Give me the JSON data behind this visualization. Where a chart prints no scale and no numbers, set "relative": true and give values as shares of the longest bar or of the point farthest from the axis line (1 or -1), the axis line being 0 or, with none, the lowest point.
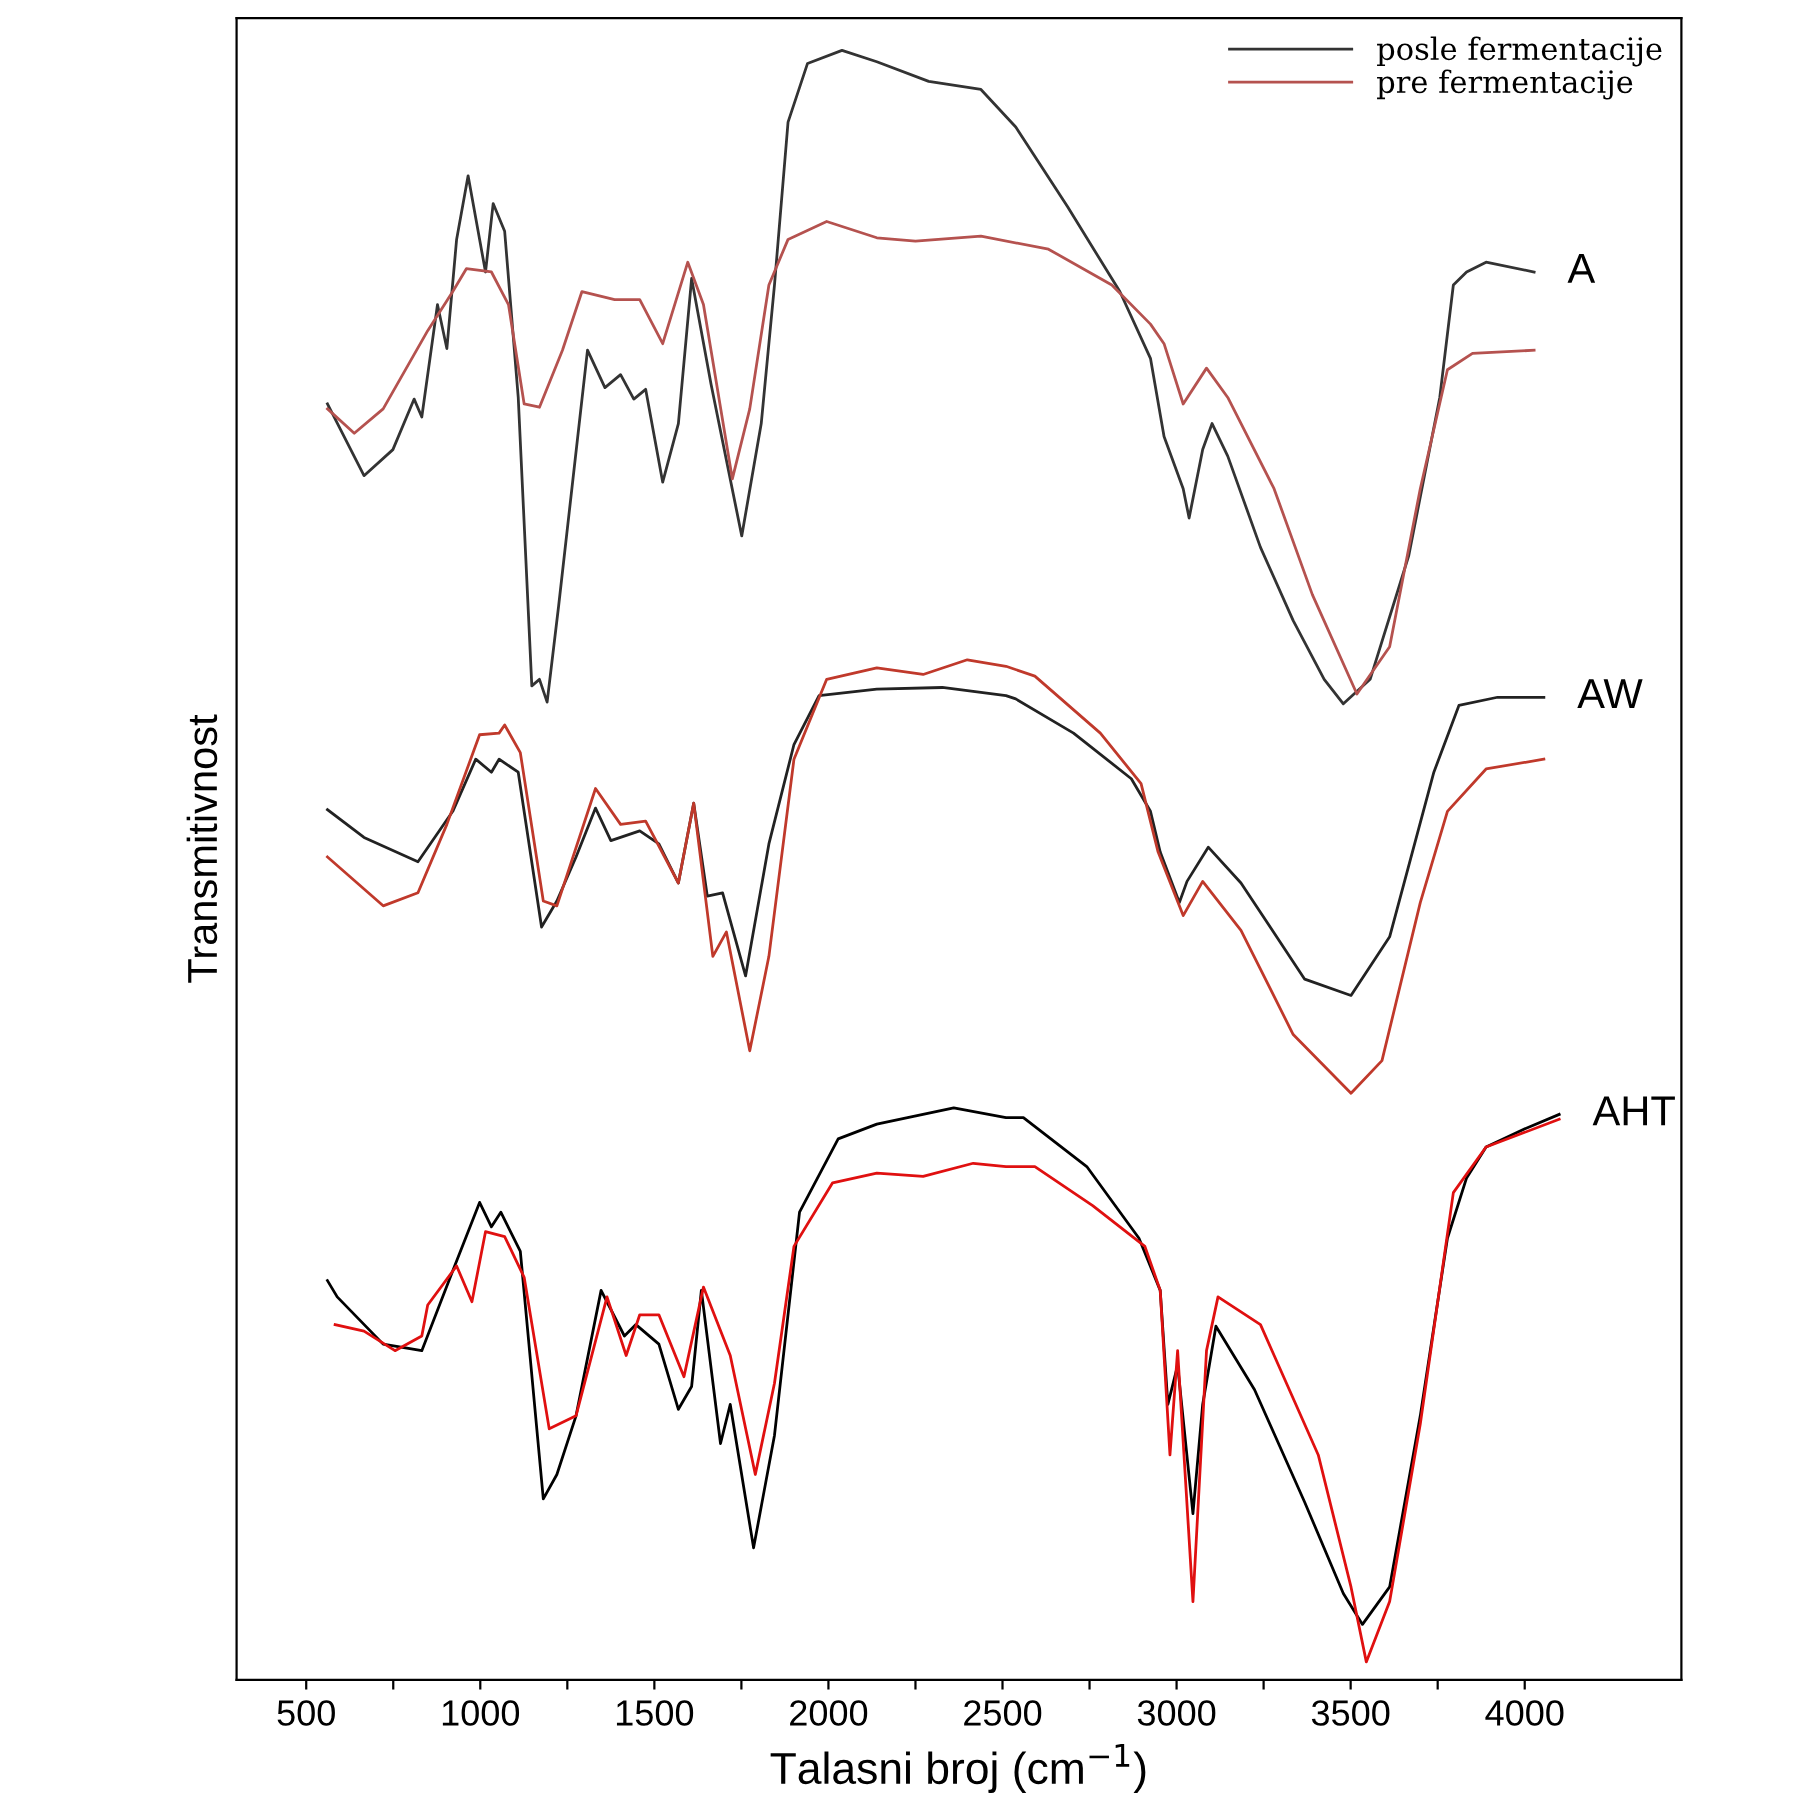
{
  "chart_data": {
    "type": "line",
    "relative": true,
    "xlabel": "Talasni broj (cm$^{−1}$)",
    "ylabel": "Transmitivnost",
    "xlim": [
      300,
      4450
    ],
    "xticks": [
      500,
      {
        "value": 750,
        "label": null
      },
      1000,
      {
        "value": 1250,
        "label": null
      },
      1500,
      {
        "value": 1750,
        "label": null
      },
      2000,
      {
        "value": 2250,
        "label": null
      },
      2500,
      {
        "value": 2750,
        "label": null
      },
      3000,
      {
        "value": 3250,
        "label": null
      },
      3500,
      {
        "value": 3750,
        "label": null
      },
      4000
    ],
    "tick_labels": "x",
    "grid": false,
    "legend": "top right",
    "annotations": [
      "A",
      "AW",
      "AHT"
    ],
    "series": [
      {
        "name": "posle fermentacije",
        "color": "#333333",
        "x": [
          561,
          666,
          749,
          810,
          832,
          877,
          904,
          932,
          965,
          1015,
          1037,
          1070,
          1109,
          1148,
          1170,
          1192,
          1225,
          1308,
          1358,
          1403,
          1441,
          1475,
          1524,
          1569,
          1607,
          1663,
          1751,
          1807,
          1845,
          1884,
          1940,
          2039,
          2139,
          2288,
          2438,
          2538,
          2687,
          2837,
          2925,
          2964,
          3019,
          3036,
          3075,
          3102,
          3147,
          3241,
          3335,
          3424,
          3479,
          3556,
          3667,
          3756,
          3795,
          3833,
          3889,
          4027
        ],
        "values": [
          0.783,
          0.739,
          0.755,
          0.786,
          0.775,
          0.844,
          0.817,
          0.884,
          0.923,
          0.864,
          0.906,
          0.889,
          0.787,
          0.61,
          0.614,
          0.6,
          0.659,
          0.816,
          0.793,
          0.801,
          0.786,
          0.792,
          0.735,
          0.771,
          0.86,
          0.795,
          0.702,
          0.771,
          0.856,
          0.956,
          0.992,
          1.0,
          0.993,
          0.981,
          0.976,
          0.953,
          0.904,
          0.852,
          0.811,
          0.763,
          0.731,
          0.713,
          0.755,
          0.771,
          0.751,
          0.695,
          0.65,
          0.614,
          0.599,
          0.614,
          0.69,
          0.787,
          0.856,
          0.864,
          0.87,
          0.864
        ]
      },
      {
        "name": "pre fermentacije",
        "color": "#b5524f",
        "x": [
          561,
          638,
          721,
          849,
          921,
          960,
          1032,
          1081,
          1126,
          1170,
          1236,
          1292,
          1386,
          1458,
          1524,
          1596,
          1641,
          1724,
          1774,
          1829,
          1884,
          1995,
          2139,
          2250,
          2438,
          2632,
          2814,
          2925,
          2964,
          3019,
          3086,
          3147,
          3280,
          3390,
          3518,
          3612,
          3700,
          3778,
          3850,
          4027
        ],
        "values": [
          0.78,
          0.765,
          0.78,
          0.828,
          0.852,
          0.866,
          0.864,
          0.844,
          0.783,
          0.781,
          0.816,
          0.852,
          0.847,
          0.847,
          0.82,
          0.87,
          0.844,
          0.737,
          0.78,
          0.856,
          0.884,
          0.895,
          0.885,
          0.883,
          0.886,
          0.878,
          0.856,
          0.832,
          0.82,
          0.783,
          0.805,
          0.787,
          0.731,
          0.666,
          0.605,
          0.634,
          0.731,
          0.804,
          0.814,
          0.816
        ]
      },
      {
        "color": "#222222",
        "x": [
          561,
          666,
          821,
          921,
          987,
          1032,
          1054,
          1109,
          1176,
          1220,
          1275,
          1331,
          1375,
          1458,
          1513,
          1569,
          1613,
          1652,
          1696,
          1762,
          1829,
          1901,
          1973,
          2139,
          2327,
          2510,
          2538,
          2704,
          2870,
          2925,
          2953,
          3008,
          3030,
          3091,
          3185,
          3368,
          3501,
          3612,
          3739,
          3811,
          3922,
          4055
        ],
        "values": [
          0.534,
          0.517,
          0.502,
          0.533,
          0.565,
          0.557,
          0.565,
          0.557,
          0.462,
          0.478,
          0.505,
          0.535,
          0.515,
          0.521,
          0.513,
          0.489,
          0.538,
          0.481,
          0.483,
          0.432,
          0.513,
          0.574,
          0.604,
          0.608,
          0.609,
          0.604,
          0.602,
          0.581,
          0.553,
          0.533,
          0.508,
          0.477,
          0.49,
          0.511,
          0.489,
          0.43,
          0.42,
          0.456,
          0.557,
          0.598,
          0.603,
          0.603
        ]
      },
      {
        "color": "#c0392b",
        "x": [
          561,
          721,
          821,
          904,
          998,
          1054,
          1070,
          1115,
          1181,
          1220,
          1331,
          1403,
          1475,
          1569,
          1613,
          1668,
          1707,
          1774,
          1829,
          1901,
          1995,
          2139,
          2272,
          2399,
          2510,
          2593,
          2781,
          2898,
          2947,
          3019,
          3075,
          3185,
          3335,
          3501,
          3590,
          3700,
          3778,
          3889,
          4055
        ],
        "values": [
          0.505,
          0.475,
          0.483,
          0.525,
          0.58,
          0.581,
          0.586,
          0.569,
          0.478,
          0.475,
          0.547,
          0.525,
          0.527,
          0.489,
          0.538,
          0.444,
          0.459,
          0.386,
          0.444,
          0.565,
          0.614,
          0.621,
          0.617,
          0.626,
          0.622,
          0.616,
          0.581,
          0.55,
          0.508,
          0.469,
          0.49,
          0.46,
          0.396,
          0.36,
          0.38,
          0.477,
          0.533,
          0.559,
          0.565
        ]
      },
      {
        "color": "#000000",
        "x": [
          561,
          589,
          721,
          832,
          921,
          998,
          1032,
          1059,
          1115,
          1181,
          1220,
          1275,
          1347,
          1414,
          1447,
          1513,
          1569,
          1607,
          1635,
          1690,
          1718,
          1785,
          1845,
          1917,
          2028,
          2139,
          2360,
          2510,
          2560,
          2742,
          2892,
          2953,
          2975,
          3003,
          3047,
          3075,
          3113,
          3224,
          3368,
          3479,
          3534,
          3612,
          3700,
          3778,
          3833,
          3889,
          3999,
          4099
        ],
        "values": [
          0.245,
          0.235,
          0.206,
          0.202,
          0.251,
          0.293,
          0.278,
          0.287,
          0.263,
          0.111,
          0.126,
          0.162,
          0.239,
          0.211,
          0.218,
          0.206,
          0.166,
          0.18,
          0.239,
          0.145,
          0.169,
          0.081,
          0.15,
          0.287,
          0.332,
          0.341,
          0.351,
          0.345,
          0.345,
          0.315,
          0.271,
          0.239,
          0.169,
          0.193,
          0.102,
          0.169,
          0.217,
          0.178,
          0.109,
          0.053,
          0.034,
          0.057,
          0.162,
          0.271,
          0.308,
          0.327,
          0.338,
          0.347
        ]
      },
      {
        "color": "#e01010",
        "x": [
          583,
          666,
          755,
          832,
          849,
          932,
          976,
          1015,
          1070,
          1126,
          1198,
          1275,
          1364,
          1419,
          1458,
          1513,
          1585,
          1641,
          1718,
          1790,
          1845,
          1901,
          2012,
          2139,
          2272,
          2416,
          2510,
          2593,
          2759,
          2909,
          2953,
          2981,
          3003,
          3047,
          3086,
          3119,
          3241,
          3407,
          3501,
          3545,
          3612,
          3700,
          3795,
          3889,
          4099
        ],
        "values": [
          0.218,
          0.214,
          0.202,
          0.211,
          0.23,
          0.254,
          0.232,
          0.275,
          0.272,
          0.247,
          0.154,
          0.162,
          0.235,
          0.199,
          0.224,
          0.224,
          0.186,
          0.241,
          0.199,
          0.126,
          0.182,
          0.266,
          0.305,
          0.311,
          0.309,
          0.317,
          0.315,
          0.315,
          0.291,
          0.266,
          0.239,
          0.138,
          0.202,
          0.048,
          0.202,
          0.235,
          0.218,
          0.138,
          0.057,
          0.011,
          0.048,
          0.157,
          0.299,
          0.327,
          0.344
        ]
      }
    ]
  }
}
